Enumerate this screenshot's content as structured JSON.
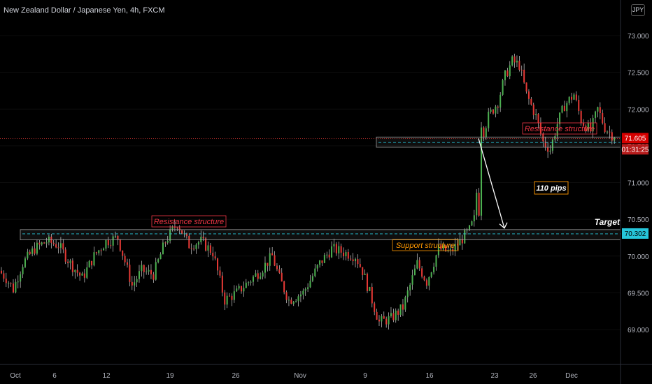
{
  "header": {
    "title": "New Zealand Dollar / Japanese Yen, 4h, FXCM"
  },
  "currency_badge": "JPY",
  "colors": {
    "up": "#26a69a",
    "down": "#ef5350",
    "bull": "#4caf50",
    "bear": "#e53935",
    "zone": "#26c6da",
    "red_label": "#f23645",
    "orange_label": "#ff9800"
  },
  "chart_data": {
    "type": "candlestick",
    "title": "New Zealand Dollar / Japanese Yen, 4h, FXCM",
    "ylim": [
      68.5,
      73.4
    ],
    "yticks": [
      "73.000",
      "72.500",
      "72.000",
      "71.500",
      "71.000",
      "70.500",
      "70.000",
      "69.500",
      "69.000"
    ],
    "xticks": [
      "Oct",
      "6",
      "12",
      "19",
      "26",
      "Nov",
      "9",
      "16",
      "23",
      "26",
      "Dec"
    ],
    "last_price": "71.605",
    "countdown": "01:31:25",
    "target_price": "70.302",
    "price_path": [
      [
        0,
        69.8
      ],
      [
        3,
        69.7
      ],
      [
        6,
        69.55
      ],
      [
        10,
        69.9
      ],
      [
        15,
        70.1
      ],
      [
        20,
        70.2
      ],
      [
        25,
        70.15
      ],
      [
        30,
        69.9
      ],
      [
        35,
        69.7
      ],
      [
        40,
        70.0
      ],
      [
        45,
        70.2
      ],
      [
        50,
        70.25
      ],
      [
        56,
        69.6
      ],
      [
        60,
        69.8
      ],
      [
        65,
        69.75
      ],
      [
        70,
        70.2
      ],
      [
        75,
        70.45
      ],
      [
        80,
        70.15
      ],
      [
        85,
        70.2
      ],
      [
        90,
        70.05
      ],
      [
        95,
        69.4
      ],
      [
        100,
        69.5
      ],
      [
        110,
        69.8
      ],
      [
        115,
        70.0
      ],
      [
        118,
        69.7
      ],
      [
        122,
        69.4
      ],
      [
        128,
        69.5
      ],
      [
        135,
        69.9
      ],
      [
        140,
        70.1
      ],
      [
        145,
        70.05
      ],
      [
        150,
        70.0
      ],
      [
        153,
        69.8
      ],
      [
        157,
        69.4
      ],
      [
        160,
        69.1
      ],
      [
        165,
        69.15
      ],
      [
        170,
        69.3
      ],
      [
        176,
        69.9
      ],
      [
        180,
        69.65
      ],
      [
        185,
        70.1
      ],
      [
        190,
        70.05
      ],
      [
        194,
        70.2
      ],
      [
        198,
        70.35
      ],
      [
        200,
        70.5
      ],
      [
        203,
        71.6
      ],
      [
        206,
        71.9
      ],
      [
        210,
        72.1
      ],
      [
        213,
        72.45
      ],
      [
        216,
        72.65
      ],
      [
        219,
        72.6
      ],
      [
        222,
        72.2
      ],
      [
        226,
        71.9
      ],
      [
        229,
        71.55
      ],
      [
        232,
        71.45
      ],
      [
        235,
        71.8
      ],
      [
        238,
        72.05
      ],
      [
        242,
        72.2
      ],
      [
        245,
        71.85
      ],
      [
        249,
        71.7
      ],
      [
        252,
        72.0
      ],
      [
        255,
        71.75
      ],
      [
        258,
        71.65
      ]
    ],
    "zones": [
      {
        "label": "Resistance structure",
        "top": 71.62,
        "bottom": 71.48,
        "mid": 71.545,
        "style": "red"
      },
      {
        "label": "Support structure",
        "top": 70.36,
        "bottom": 70.22,
        "mid": 70.302,
        "style": "orange"
      }
    ],
    "labels": {
      "resistance_upper": "Resistance structure",
      "resistance_lower": "Resistance structure",
      "support": "Support structure",
      "pips": "110 pips",
      "target": "Target"
    },
    "projection": {
      "from_price": 71.6,
      "to_price": 70.38
    }
  }
}
